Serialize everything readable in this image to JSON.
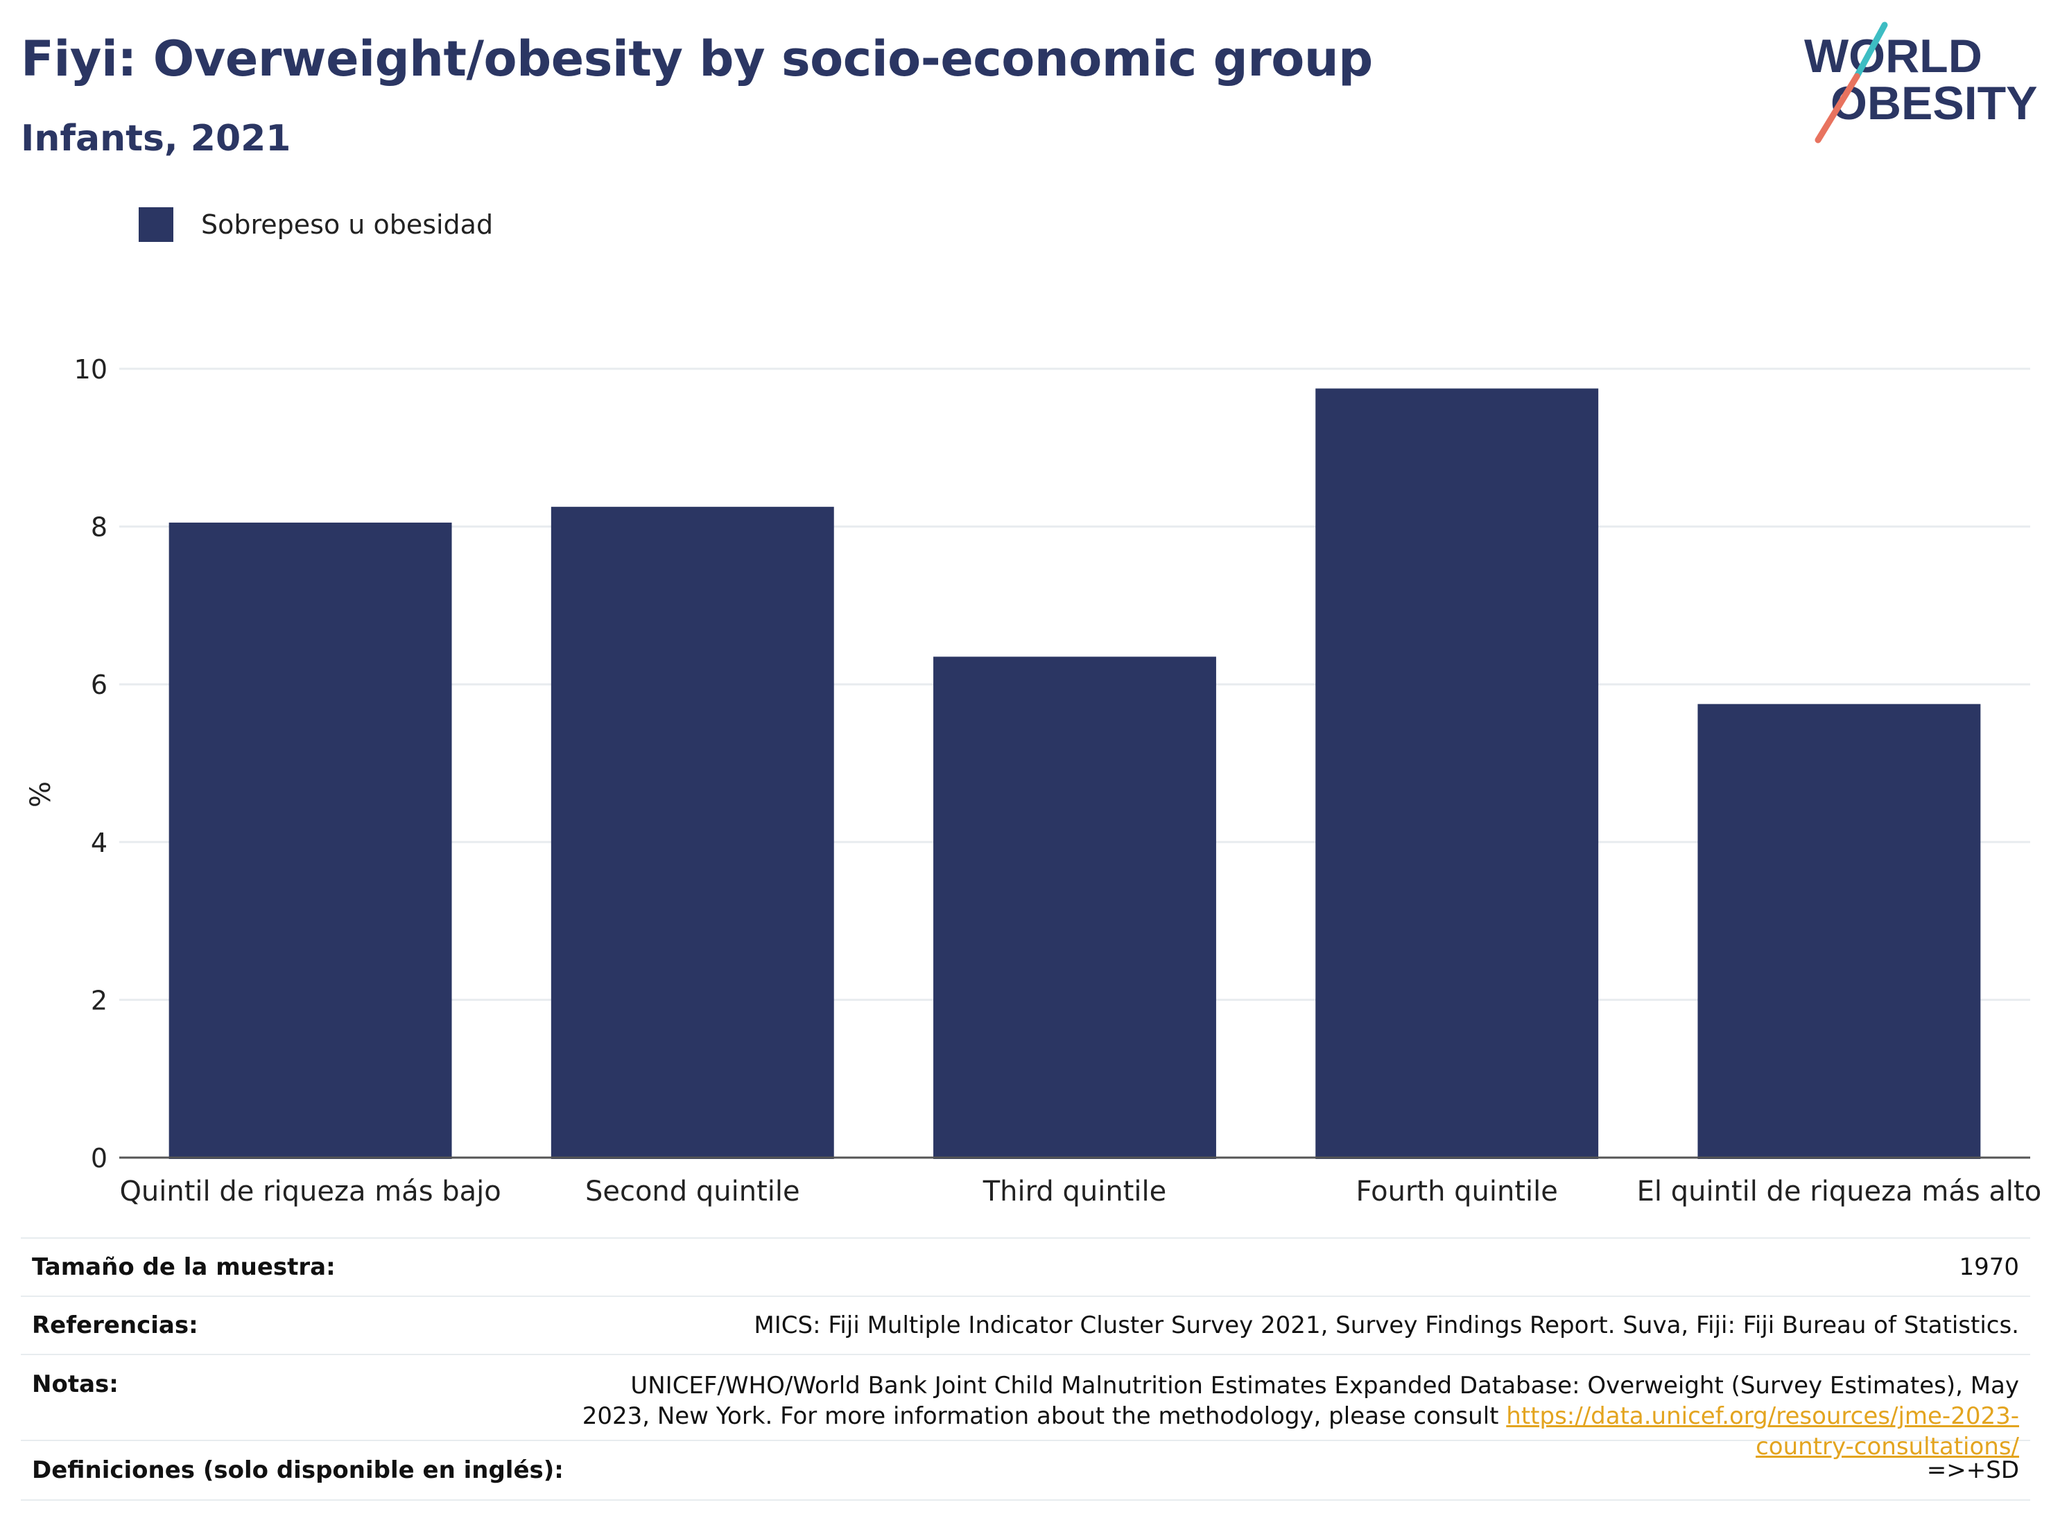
{
  "header": {
    "title": "Fiyi: Overweight/obesity by socio-economic group",
    "subtitle": "Infants, 2021"
  },
  "logo": {
    "line1": "WORLD",
    "line2": "OBESITY",
    "icon": "world-obesity-logo"
  },
  "colors": {
    "bar": "#2b3663",
    "title": "#2b3663",
    "grid": "#e8ecef",
    "axis": "#555555",
    "link": "#e3a41f",
    "logo_teal": "#3dbdc3",
    "logo_coral": "#e8735f"
  },
  "chart_data": {
    "type": "bar",
    "categories": [
      "Quintil de riqueza más bajo",
      "Second quintile",
      "Third quintile",
      "Fourth quintile",
      "El quintil de riqueza más alto"
    ],
    "series": [
      {
        "name": "Sobrepeso u obesidad",
        "values": [
          8.05,
          8.25,
          6.35,
          9.75,
          5.75
        ]
      }
    ],
    "ylabel": "%",
    "ylim": [
      0,
      10
    ],
    "yticks": [
      0,
      2,
      4,
      6,
      8,
      10
    ],
    "grid": true,
    "legend_position": "top-left"
  },
  "footer": {
    "sample_label": "Tamaño de la muestra:",
    "sample_value": "1970",
    "refs_label": "Referencias:",
    "refs_value": "MICS: Fiji Multiple Indicator Cluster Survey 2021, Survey Findings Report. Suva, Fiji: Fiji Bureau of Statistics.",
    "notes_label": "Notas:",
    "notes_text": "UNICEF/WHO/World Bank Joint Child Malnutrition Estimates Expanded Database: Overweight (Survey Estimates), May 2023, New York. For more information about the methodology, please consult ",
    "notes_link": "https://data.unicef.org/resources/jme-2023-country-consultations/",
    "defs_label": "Definiciones (solo disponible en inglés):",
    "defs_value": "=>+SD"
  }
}
